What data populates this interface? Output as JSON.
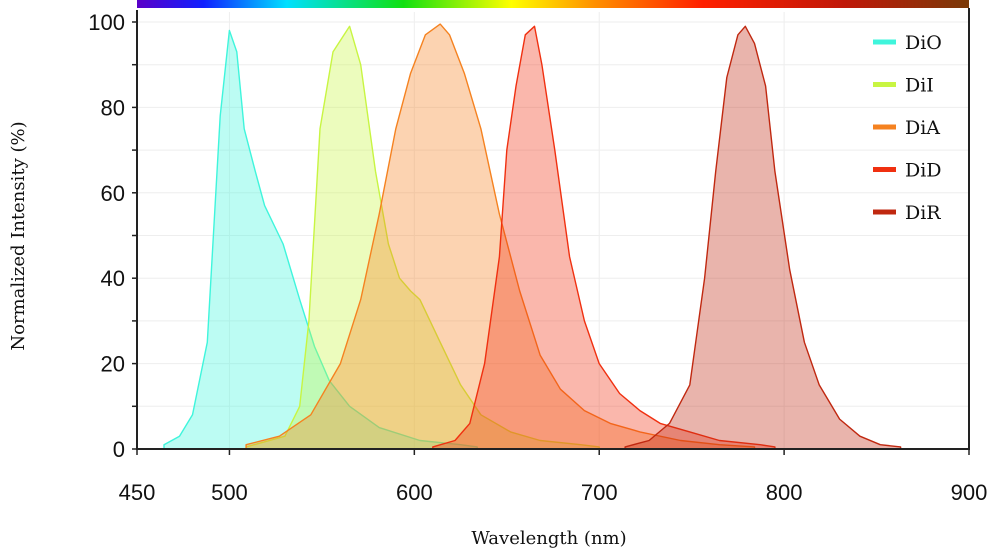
{
  "chart_data": {
    "type": "area",
    "title": "",
    "xlabel": "Wavelength (nm)",
    "ylabel": "Normalized Intensity (%)",
    "xlim": [
      450,
      900
    ],
    "ylim": [
      0,
      100
    ],
    "xticks": [
      450,
      500,
      600,
      700,
      800,
      900
    ],
    "yticks": [
      0,
      20,
      40,
      60,
      80,
      100
    ],
    "grid": true,
    "legend_position": "top-right",
    "series": [
      {
        "name": "DiO",
        "color": "#3ff5dc",
        "points": [
          [
            464.6,
            1
          ],
          [
            473,
            3
          ],
          [
            480,
            8
          ],
          [
            488,
            25
          ],
          [
            495,
            78
          ],
          [
            500,
            98
          ],
          [
            504,
            93
          ],
          [
            508,
            75
          ],
          [
            514,
            65
          ],
          [
            519,
            57
          ],
          [
            529,
            48
          ],
          [
            538,
            35
          ],
          [
            546,
            24
          ],
          [
            554,
            16
          ],
          [
            565,
            10
          ],
          [
            581,
            5
          ],
          [
            603,
            2
          ],
          [
            625,
            1
          ],
          [
            634,
            0.5
          ]
        ]
      },
      {
        "name": "DiI",
        "color": "#c8f542",
        "points": [
          [
            509,
            0.5
          ],
          [
            530,
            3
          ],
          [
            538,
            10
          ],
          [
            543,
            30
          ],
          [
            549,
            75
          ],
          [
            556,
            93
          ],
          [
            565,
            99
          ],
          [
            571,
            90
          ],
          [
            579,
            65
          ],
          [
            586,
            48
          ],
          [
            592,
            40
          ],
          [
            598,
            37
          ],
          [
            603,
            35
          ],
          [
            614,
            25
          ],
          [
            625,
            15
          ],
          [
            636,
            8
          ],
          [
            652,
            4
          ],
          [
            668,
            2
          ],
          [
            690,
            1
          ],
          [
            700,
            0.5
          ]
        ]
      },
      {
        "name": "DiA",
        "color": "#f58220",
        "points": [
          [
            509,
            1
          ],
          [
            527,
            3
          ],
          [
            544,
            8
          ],
          [
            560,
            20
          ],
          [
            571,
            35
          ],
          [
            581,
            55
          ],
          [
            590,
            75
          ],
          [
            598,
            88
          ],
          [
            606,
            97
          ],
          [
            614,
            99.5
          ],
          [
            619,
            97
          ],
          [
            627,
            88
          ],
          [
            636,
            75
          ],
          [
            646,
            55
          ],
          [
            657,
            37
          ],
          [
            668,
            22
          ],
          [
            679,
            14
          ],
          [
            692,
            9
          ],
          [
            706,
            6
          ],
          [
            722,
            4
          ],
          [
            744,
            2
          ],
          [
            765,
            1
          ],
          [
            784,
            0.5
          ]
        ]
      },
      {
        "name": "DiD",
        "color": "#f03010",
        "points": [
          [
            610,
            0.5
          ],
          [
            622,
            2
          ],
          [
            630,
            6
          ],
          [
            638,
            20
          ],
          [
            646,
            45
          ],
          [
            650,
            70
          ],
          [
            655,
            85
          ],
          [
            660,
            97
          ],
          [
            665,
            99
          ],
          [
            669,
            90
          ],
          [
            676,
            70
          ],
          [
            684,
            45
          ],
          [
            692,
            30
          ],
          [
            700,
            20
          ],
          [
            711,
            13
          ],
          [
            722,
            9
          ],
          [
            733,
            6
          ],
          [
            749,
            4
          ],
          [
            765,
            2
          ],
          [
            787,
            1
          ],
          [
            795,
            0.5
          ]
        ]
      },
      {
        "name": "DiR",
        "color": "#c02810",
        "points": [
          [
            714,
            0.5
          ],
          [
            727,
            2
          ],
          [
            738,
            6
          ],
          [
            749,
            15
          ],
          [
            757,
            40
          ],
          [
            763,
            65
          ],
          [
            769,
            87
          ],
          [
            775,
            97
          ],
          [
            779,
            99
          ],
          [
            784,
            95
          ],
          [
            790,
            85
          ],
          [
            795,
            65
          ],
          [
            803,
            42
          ],
          [
            811,
            25
          ],
          [
            819,
            15
          ],
          [
            830,
            7
          ],
          [
            841,
            3
          ],
          [
            852,
            1
          ],
          [
            863,
            0.5
          ]
        ]
      }
    ]
  }
}
